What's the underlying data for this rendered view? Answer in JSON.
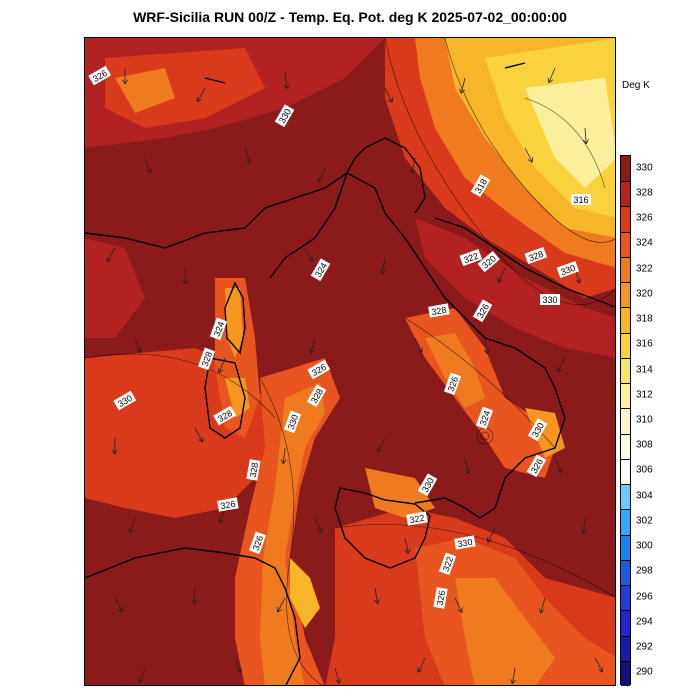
{
  "title": "WRF-Sicilia RUN 00/Z - Temp. Eq. Pot. deg K 2025-07-02_00:00:00",
  "colorbar": {
    "units": "Deg K",
    "levels": [
      "330",
      "328",
      "326",
      "324",
      "322",
      "320",
      "318",
      "316",
      "314",
      "312",
      "310",
      "308",
      "306",
      "304",
      "302",
      "300",
      "298",
      "296",
      "294",
      "292",
      "290"
    ],
    "colors": [
      "#8b1a1a",
      "#b22222",
      "#d93a1b",
      "#e8551e",
      "#f07a1f",
      "#f5971f",
      "#f7b52a",
      "#f9d23d",
      "#fbe36a",
      "#fcef9c",
      "#fdf6c8",
      "#fefbe6",
      "#ffffff",
      "#66ccff",
      "#33a8ff",
      "#1a80f0",
      "#1a5ce0",
      "#1f3dd6",
      "#2424c8",
      "#1a1aa8",
      "#10107a"
    ]
  },
  "contour_labels": [
    "326",
    "330",
    "318",
    "316",
    "324",
    "322",
    "320",
    "328",
    "330",
    "328",
    "326",
    "330",
    "324",
    "328",
    "330",
    "326",
    "328",
    "330",
    "326",
    "324",
    "330",
    "328",
    "326",
    "330",
    "322",
    "326",
    "328",
    "326",
    "330",
    "322",
    "326"
  ],
  "wind_vectors": "arrows"
}
